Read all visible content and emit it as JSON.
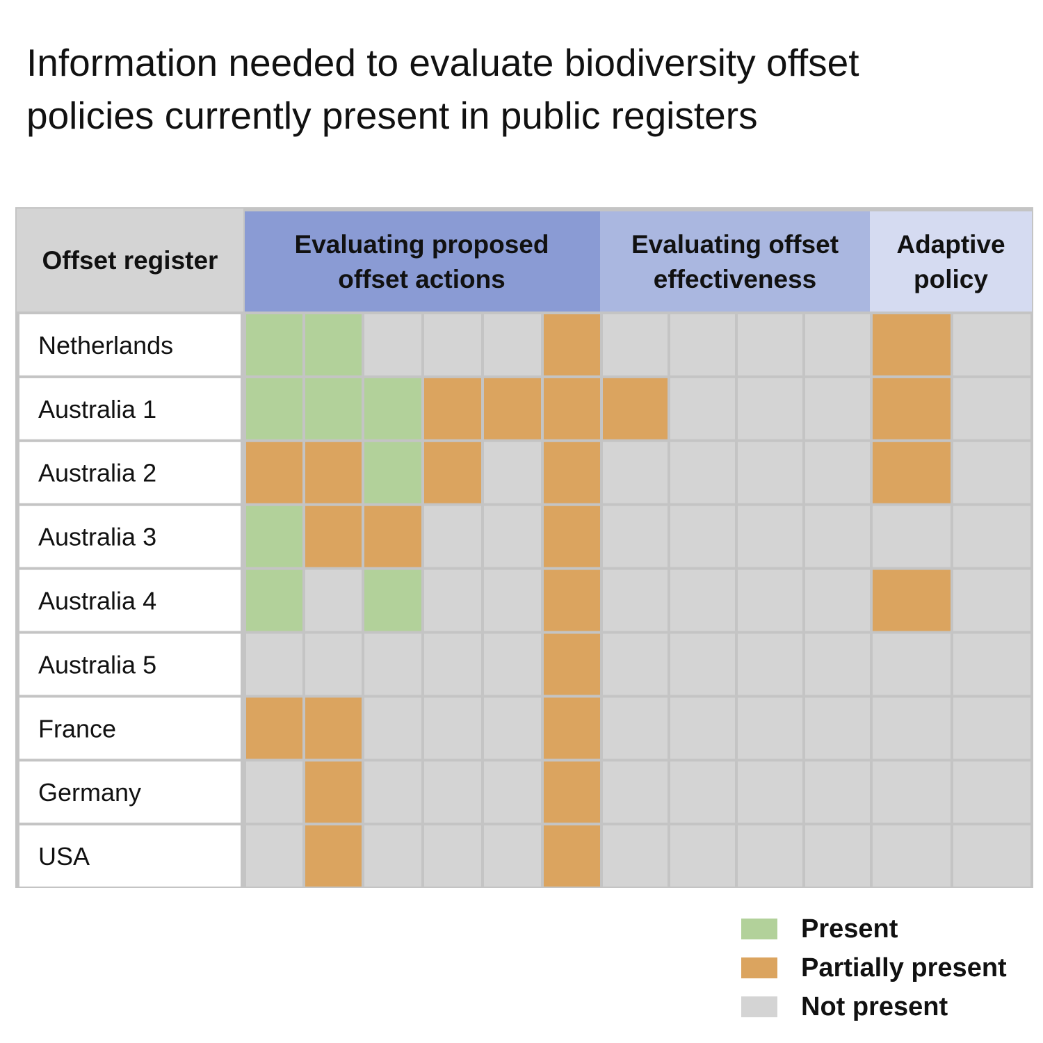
{
  "chart_data": {
    "type": "heatmap",
    "title_lines": [
      "Information needed to evaluate biodiversity offset",
      "policies currently present in public registers"
    ],
    "row_header": "Offset register",
    "column_groups": [
      {
        "lines": [
          "Evaluating proposed",
          "offset actions"
        ],
        "columns": 6,
        "color": "#8a9bd4"
      },
      {
        "lines": [
          "Evaluating offset",
          "effectiveness"
        ],
        "columns": 4,
        "color": "#aab7e0"
      },
      {
        "lines": [
          "Adaptive",
          "policy"
        ],
        "columns": 2,
        "color": "#d5dbf1"
      }
    ],
    "rows": [
      "Netherlands",
      "Australia 1",
      "Australia 2",
      "Australia 3",
      "Australia 4",
      "Australia 5",
      "France",
      "Germany",
      "USA"
    ],
    "values": [
      [
        "present",
        "present",
        "not_present",
        "not_present",
        "not_present",
        "partially_present",
        "not_present",
        "not_present",
        "not_present",
        "not_present",
        "partially_present",
        "not_present"
      ],
      [
        "present",
        "present",
        "present",
        "partially_present",
        "partially_present",
        "partially_present",
        "partially_present",
        "not_present",
        "not_present",
        "not_present",
        "partially_present",
        "not_present"
      ],
      [
        "partially_present",
        "partially_present",
        "present",
        "partially_present",
        "not_present",
        "partially_present",
        "not_present",
        "not_present",
        "not_present",
        "not_present",
        "partially_present",
        "not_present"
      ],
      [
        "present",
        "partially_present",
        "partially_present",
        "not_present",
        "not_present",
        "partially_present",
        "not_present",
        "not_present",
        "not_present",
        "not_present",
        "not_present",
        "not_present"
      ],
      [
        "present",
        "not_present",
        "present",
        "not_present",
        "not_present",
        "partially_present",
        "not_present",
        "not_present",
        "not_present",
        "not_present",
        "partially_present",
        "not_present"
      ],
      [
        "not_present",
        "not_present",
        "not_present",
        "not_present",
        "not_present",
        "partially_present",
        "not_present",
        "not_present",
        "not_present",
        "not_present",
        "not_present",
        "not_present"
      ],
      [
        "partially_present",
        "partially_present",
        "not_present",
        "not_present",
        "not_present",
        "partially_present",
        "not_present",
        "not_present",
        "not_present",
        "not_present",
        "not_present",
        "not_present"
      ],
      [
        "not_present",
        "partially_present",
        "not_present",
        "not_present",
        "not_present",
        "partially_present",
        "not_present",
        "not_present",
        "not_present",
        "not_present",
        "not_present",
        "not_present"
      ],
      [
        "not_present",
        "partially_present",
        "not_present",
        "not_present",
        "not_present",
        "partially_present",
        "not_present",
        "not_present",
        "not_present",
        "not_present",
        "not_present",
        "not_present"
      ]
    ],
    "legend": [
      {
        "key": "present",
        "label": "Present",
        "color": "#b2d19a"
      },
      {
        "key": "partially_present",
        "label": "Partially present",
        "color": "#dba45f"
      },
      {
        "key": "not_present",
        "label": "Not present",
        "color": "#d4d4d4"
      }
    ]
  }
}
